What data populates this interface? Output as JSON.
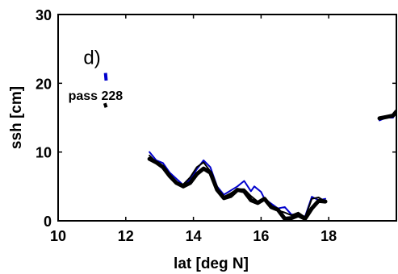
{
  "chart_data": {
    "type": "line",
    "panel_label": "d)",
    "legend_label": "pass 228",
    "xlabel": "lat [deg N]",
    "ylabel": "ssh [cm]",
    "xlim": [
      10,
      20
    ],
    "ylim": [
      0,
      30
    ],
    "xticks": [
      "10",
      "12",
      "14",
      "16",
      "18"
    ],
    "yticks": [
      "0",
      "10",
      "20",
      "30"
    ],
    "xtick_values": [
      10,
      12,
      14,
      16,
      18
    ],
    "ytick_values": [
      0,
      10,
      20,
      30
    ],
    "grid": false,
    "legend_markers": [
      {
        "color": "#0000cc",
        "x": [
          11.4,
          11.42
        ],
        "y": [
          21.5,
          20.4
        ]
      },
      {
        "color": "#000000",
        "x": [
          11.38,
          11.42
        ],
        "y": [
          17.1,
          16.5
        ]
      }
    ],
    "series": [
      {
        "color": "#0000cc",
        "width": 2,
        "segments": [
          {
            "x": [
              12.7,
              12.9,
              13.1,
              13.3,
              13.5,
              13.7,
              13.9,
              14.1,
              14.3,
              14.5,
              14.7,
              14.9,
              15.1,
              15.3,
              15.5,
              15.7,
              15.8,
              16.0,
              16.1,
              16.3,
              16.5,
              16.7,
              16.9,
              17.1,
              17.3,
              17.5,
              17.7,
              17.9
            ],
            "y": [
              10.0,
              8.8,
              8.4,
              7.0,
              6.1,
              5.2,
              6.0,
              7.5,
              8.8,
              7.8,
              5.0,
              3.8,
              4.4,
              5.0,
              5.8,
              4.3,
              5.0,
              4.2,
              3.2,
              2.5,
              1.8,
              2.0,
              0.9,
              1.0,
              0.6,
              3.5,
              3.0,
              3.2
            ]
          },
          {
            "x": [
              19.5,
              19.7,
              19.9,
              20.0
            ],
            "y": [
              14.6,
              15.0,
              15.0,
              15.8
            ]
          }
        ]
      },
      {
        "color": "#000000",
        "width": 2,
        "segments": [
          {
            "x": [
              12.7,
              12.9,
              13.1,
              13.3,
              13.5,
              13.7,
              13.9,
              14.1,
              14.3,
              14.5,
              14.7,
              14.9,
              15.1,
              15.3,
              15.5,
              15.7,
              15.9,
              16.1,
              16.3,
              16.5,
              16.7,
              16.9,
              17.1,
              17.3,
              17.5,
              17.7,
              17.9
            ],
            "y": [
              9.5,
              8.5,
              8.0,
              6.5,
              5.5,
              5.3,
              6.3,
              7.8,
              8.5,
              7.2,
              4.5,
              3.5,
              4.0,
              4.6,
              4.6,
              3.6,
              2.8,
              3.0,
              2.2,
              1.5,
              1.2,
              0.8,
              1.2,
              0.5,
              3.2,
              3.4,
              2.8
            ]
          },
          {
            "x": [
              19.5,
              19.7,
              19.9,
              20.0
            ],
            "y": [
              14.8,
              15.2,
              15.2,
              16.0
            ]
          }
        ]
      },
      {
        "color": "#000000",
        "width": 5,
        "segments": [
          {
            "x": [
              12.7,
              12.9,
              13.1,
              13.3,
              13.5,
              13.7,
              13.9,
              14.1,
              14.3,
              14.5,
              14.7,
              14.9,
              15.1,
              15.3,
              15.5,
              15.7,
              15.9,
              16.1,
              16.3,
              16.5,
              16.7,
              16.9,
              17.1,
              17.3,
              17.5,
              17.7,
              17.9
            ],
            "y": [
              9.0,
              8.5,
              7.8,
              6.5,
              5.5,
              5.0,
              5.5,
              6.8,
              7.6,
              7.0,
              4.5,
              3.3,
              3.6,
              4.5,
              4.3,
              3.0,
              2.6,
              3.2,
              2.0,
              1.6,
              0.3,
              0.4,
              0.8,
              0.3,
              1.8,
              2.9,
              2.8
            ]
          },
          {
            "x": [
              19.5,
              19.7,
              19.9,
              20.0
            ],
            "y": [
              14.9,
              15.1,
              15.3,
              15.9
            ]
          }
        ]
      }
    ]
  }
}
